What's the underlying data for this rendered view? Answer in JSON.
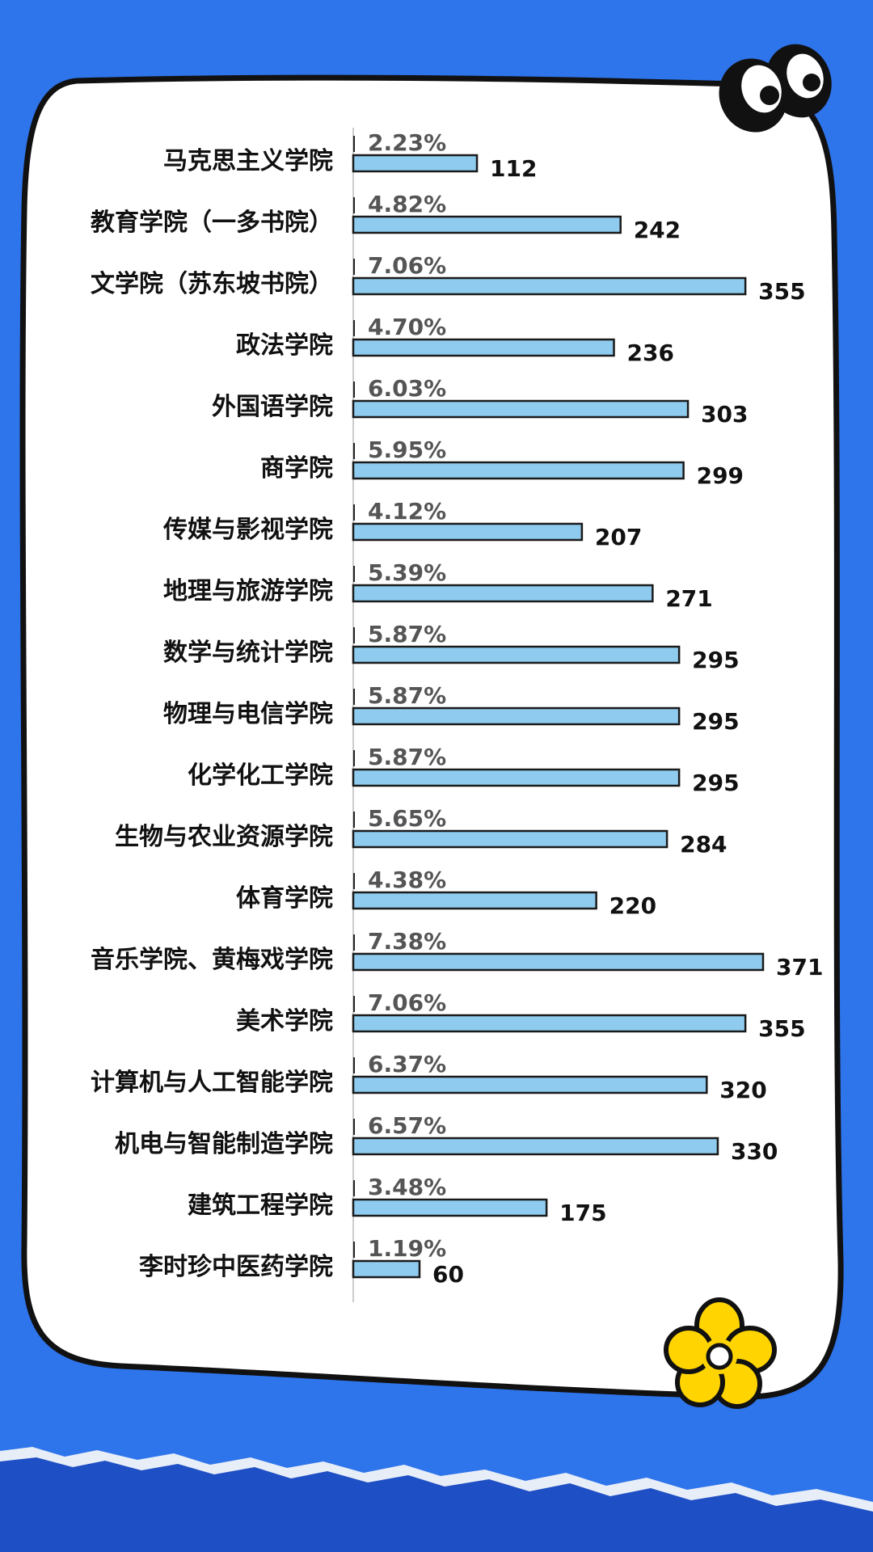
{
  "colors": {
    "background": "#2e74ea",
    "card": "#ffffff",
    "card_border": "#111111",
    "bar_fill": "#8ecbee",
    "bar_stroke": "#1a1a1a",
    "bottom_band": "#1f4fc4",
    "flower": "#ffd400"
  },
  "decorations": [
    "eyes-icon",
    "flower-icon",
    "torn-paper-edge"
  ],
  "chart_data": {
    "type": "bar",
    "orientation": "horizontal",
    "title": "",
    "xlabel": "",
    "ylabel": "",
    "xlim": [
      0,
      400
    ],
    "grid": false,
    "legend": "none",
    "categories": [
      "马克思主义学院",
      "教育学院（一多书院）",
      "文学院（苏东坡书院）",
      "政法学院",
      "外国语学院",
      "商学院",
      "传媒与影视学院",
      "地理与旅游学院",
      "数学与统计学院",
      "物理与电信学院",
      "化学化工学院",
      "生物与农业资源学院",
      "体育学院",
      "音乐学院、黄梅戏学院",
      "美术学院",
      "计算机与人工智能学院",
      "机电与智能制造学院",
      "建筑工程学院",
      "李时珍中医药学院"
    ],
    "values": [
      112,
      242,
      355,
      236,
      303,
      299,
      207,
      271,
      295,
      295,
      295,
      284,
      220,
      371,
      355,
      320,
      330,
      175,
      60
    ],
    "percentages": [
      "2.23%",
      "4.82%",
      "7.06%",
      "4.70%",
      "6.03%",
      "5.95%",
      "4.12%",
      "5.39%",
      "5.87%",
      "5.87%",
      "5.87%",
      "5.65%",
      "4.38%",
      "7.38%",
      "7.06%",
      "6.37%",
      "6.57%",
      "3.48%",
      "1.19%"
    ]
  }
}
